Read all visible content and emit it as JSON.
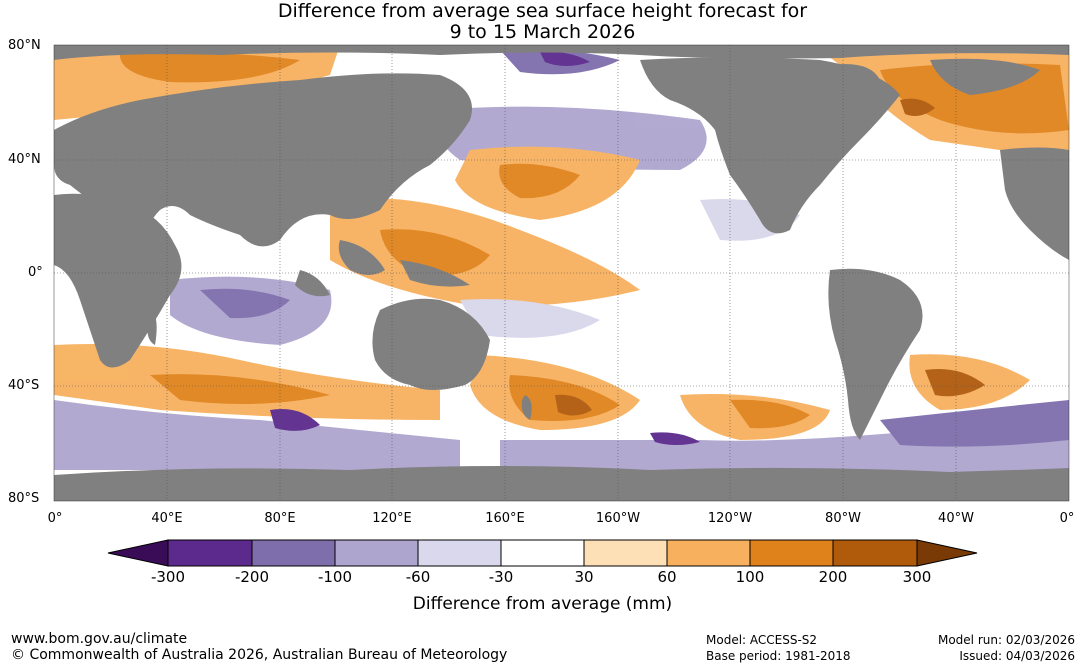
{
  "title": {
    "line1": "Difference from average sea surface height forecast for",
    "line2": "9 to 15 March 2026"
  },
  "axes": {
    "lat_labels": [
      "80°N",
      "40°N",
      "0°",
      "40°S",
      "80°S"
    ],
    "lon_labels": [
      "0°",
      "40°E",
      "80°E",
      "120°E",
      "160°E",
      "160°W",
      "120°W",
      "80°W",
      "40°W",
      "0°"
    ]
  },
  "legend": {
    "title": "Difference from average (mm)",
    "ticks": [
      "-300",
      "-200",
      "-100",
      "-60",
      "-30",
      "30",
      "60",
      "100",
      "200",
      "300"
    ],
    "colors": [
      "#3a0c57",
      "#5b2a8c",
      "#7e6eac",
      "#aea5cf",
      "#d9d8ec",
      "#ffffff",
      "#fde0b5",
      "#f7b15e",
      "#e0821c",
      "#b05a0c",
      "#7a3a06"
    ]
  },
  "footer": {
    "website": "www.bom.gov.au/climate",
    "copyright": "© Commonwealth of Australia 2026, Australian Bureau of Meteorology",
    "model": "Model: ACCESS-S2",
    "base_period": "Base period: 1981-2018",
    "model_run": "Model run: 02/03/2026",
    "issued": "Issued: 04/03/2026"
  },
  "map_colors": {
    "land": "#808080",
    "ocean": "#ffffff",
    "grid": "#555555"
  }
}
